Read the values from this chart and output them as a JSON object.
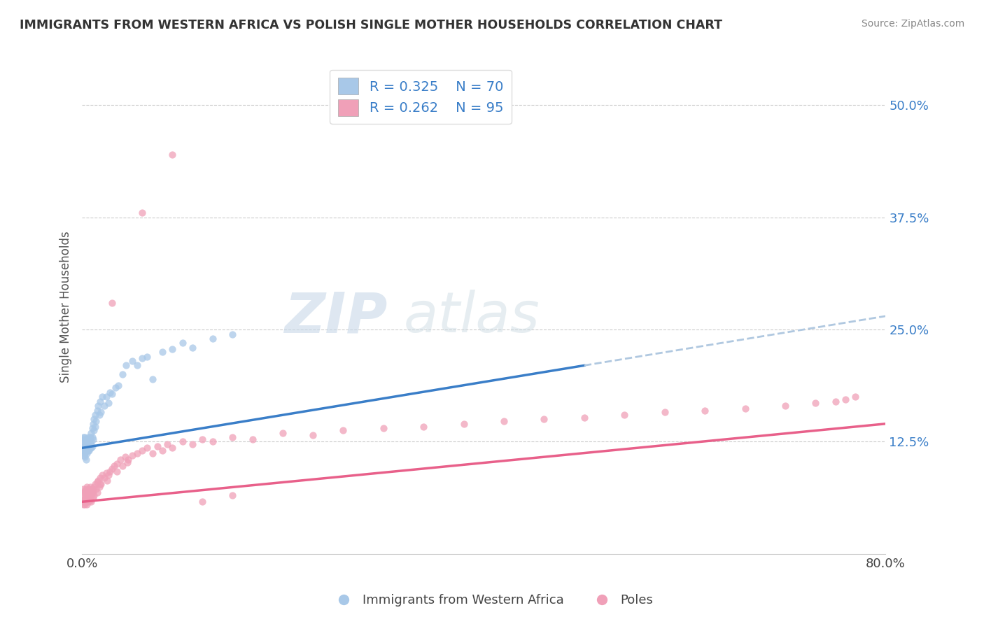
{
  "title": "IMMIGRANTS FROM WESTERN AFRICA VS POLISH SINGLE MOTHER HOUSEHOLDS CORRELATION CHART",
  "source": "Source: ZipAtlas.com",
  "ylabel": "Single Mother Households",
  "xlim": [
    0.0,
    0.8
  ],
  "ylim": [
    0.0,
    0.55
  ],
  "ytick_positions": [
    0.125,
    0.25,
    0.375,
    0.5
  ],
  "ytick_labels": [
    "12.5%",
    "25.0%",
    "37.5%",
    "50.0%"
  ],
  "legend1_R": "0.325",
  "legend1_N": "70",
  "legend2_R": "0.262",
  "legend2_N": "95",
  "color_blue": "#A8C8E8",
  "color_pink": "#F0A0B8",
  "line_color_blue": "#3A7EC8",
  "line_color_pink": "#E8608A",
  "line_color_dashed": "#B0C8E0",
  "blue_line_x0": 0.0,
  "blue_line_y0": 0.118,
  "blue_line_x1": 0.5,
  "blue_line_y1": 0.21,
  "dash_line_x0": 0.5,
  "dash_line_y0": 0.21,
  "dash_line_x1": 0.8,
  "dash_line_y1": 0.265,
  "pink_line_x0": 0.0,
  "pink_line_y0": 0.058,
  "pink_line_x1": 0.8,
  "pink_line_y1": 0.145,
  "blue_scatter_x": [
    0.001,
    0.001,
    0.001,
    0.002,
    0.002,
    0.002,
    0.002,
    0.003,
    0.003,
    0.003,
    0.003,
    0.003,
    0.004,
    0.004,
    0.004,
    0.004,
    0.005,
    0.005,
    0.005,
    0.005,
    0.006,
    0.006,
    0.006,
    0.006,
    0.007,
    0.007,
    0.007,
    0.007,
    0.008,
    0.008,
    0.008,
    0.009,
    0.009,
    0.009,
    0.01,
    0.01,
    0.01,
    0.011,
    0.011,
    0.012,
    0.012,
    0.013,
    0.013,
    0.014,
    0.015,
    0.016,
    0.017,
    0.018,
    0.019,
    0.02,
    0.022,
    0.024,
    0.026,
    0.028,
    0.03,
    0.033,
    0.036,
    0.04,
    0.044,
    0.05,
    0.055,
    0.06,
    0.065,
    0.07,
    0.08,
    0.09,
    0.1,
    0.11,
    0.13,
    0.15
  ],
  "blue_scatter_y": [
    0.115,
    0.125,
    0.13,
    0.11,
    0.12,
    0.128,
    0.115,
    0.112,
    0.118,
    0.122,
    0.108,
    0.13,
    0.115,
    0.122,
    0.118,
    0.105,
    0.12,
    0.128,
    0.112,
    0.118,
    0.122,
    0.115,
    0.13,
    0.118,
    0.125,
    0.12,
    0.115,
    0.128,
    0.13,
    0.122,
    0.118,
    0.135,
    0.125,
    0.118,
    0.14,
    0.13,
    0.12,
    0.145,
    0.128,
    0.15,
    0.138,
    0.155,
    0.142,
    0.148,
    0.16,
    0.165,
    0.155,
    0.17,
    0.158,
    0.175,
    0.165,
    0.175,
    0.168,
    0.18,
    0.178,
    0.185,
    0.188,
    0.2,
    0.21,
    0.215,
    0.21,
    0.218,
    0.22,
    0.195,
    0.225,
    0.228,
    0.235,
    0.23,
    0.24,
    0.245
  ],
  "pink_scatter_x": [
    0.001,
    0.001,
    0.001,
    0.002,
    0.002,
    0.002,
    0.003,
    0.003,
    0.003,
    0.004,
    0.004,
    0.004,
    0.004,
    0.005,
    0.005,
    0.005,
    0.005,
    0.006,
    0.006,
    0.006,
    0.007,
    0.007,
    0.008,
    0.008,
    0.008,
    0.009,
    0.009,
    0.01,
    0.01,
    0.011,
    0.011,
    0.012,
    0.012,
    0.013,
    0.014,
    0.015,
    0.015,
    0.016,
    0.017,
    0.018,
    0.019,
    0.02,
    0.022,
    0.024,
    0.026,
    0.028,
    0.03,
    0.032,
    0.035,
    0.038,
    0.04,
    0.043,
    0.046,
    0.05,
    0.055,
    0.06,
    0.065,
    0.07,
    0.075,
    0.08,
    0.085,
    0.09,
    0.1,
    0.11,
    0.12,
    0.13,
    0.15,
    0.17,
    0.2,
    0.23,
    0.26,
    0.3,
    0.34,
    0.38,
    0.42,
    0.46,
    0.5,
    0.54,
    0.58,
    0.62,
    0.66,
    0.7,
    0.73,
    0.75,
    0.76,
    0.77,
    0.035,
    0.045,
    0.025,
    0.018,
    0.03,
    0.06,
    0.09,
    0.12,
    0.15
  ],
  "pink_scatter_y": [
    0.065,
    0.055,
    0.072,
    0.06,
    0.068,
    0.058,
    0.062,
    0.07,
    0.055,
    0.065,
    0.058,
    0.072,
    0.062,
    0.06,
    0.068,
    0.055,
    0.075,
    0.062,
    0.07,
    0.058,
    0.065,
    0.072,
    0.068,
    0.06,
    0.075,
    0.065,
    0.058,
    0.068,
    0.072,
    0.07,
    0.062,
    0.075,
    0.065,
    0.078,
    0.072,
    0.08,
    0.068,
    0.082,
    0.075,
    0.085,
    0.078,
    0.088,
    0.085,
    0.09,
    0.088,
    0.092,
    0.095,
    0.098,
    0.1,
    0.105,
    0.098,
    0.108,
    0.105,
    0.11,
    0.112,
    0.115,
    0.118,
    0.112,
    0.12,
    0.115,
    0.122,
    0.118,
    0.125,
    0.122,
    0.128,
    0.125,
    0.13,
    0.128,
    0.135,
    0.132,
    0.138,
    0.14,
    0.142,
    0.145,
    0.148,
    0.15,
    0.152,
    0.155,
    0.158,
    0.16,
    0.162,
    0.165,
    0.168,
    0.17,
    0.172,
    0.175,
    0.092,
    0.102,
    0.082,
    0.078,
    0.28,
    0.38,
    0.445,
    0.058,
    0.065
  ]
}
